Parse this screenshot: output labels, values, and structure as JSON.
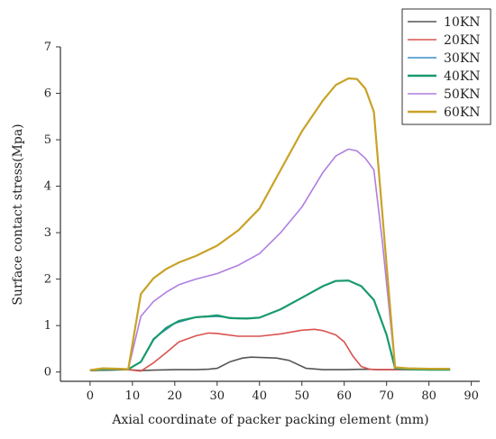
{
  "chart_data": {
    "type": "line",
    "xlabel": "Axial coordinate of packer packing element (mm)",
    "ylabel": "Surface contact stress(Mpa)",
    "xlim": [
      -7,
      92
    ],
    "ylim": [
      -0.2,
      7
    ],
    "xticks": [
      0,
      10,
      20,
      30,
      40,
      50,
      60,
      70,
      80,
      90
    ],
    "yticks": [
      0,
      1,
      2,
      3,
      4,
      5,
      6,
      7
    ],
    "grid": false,
    "legend_position": "top-right",
    "series": [
      {
        "name": "10KN",
        "color": "#555555",
        "x": [
          0,
          5,
          9,
          12,
          15,
          20,
          25,
          28,
          30,
          33,
          36,
          38,
          41,
          44,
          47,
          51,
          55,
          60,
          65,
          68,
          70,
          72,
          75,
          80,
          85
        ],
        "y": [
          0.03,
          0.04,
          0.05,
          0.03,
          0.04,
          0.05,
          0.05,
          0.06,
          0.08,
          0.22,
          0.3,
          0.32,
          0.31,
          0.3,
          0.25,
          0.08,
          0.05,
          0.05,
          0.06,
          0.05,
          0.05,
          0.05,
          0.05,
          0.05,
          0.05
        ]
      },
      {
        "name": "20KN",
        "color": "#d9534f",
        "x": [
          0,
          5,
          9,
          12,
          15,
          18,
          21,
          25,
          28,
          30,
          35,
          40,
          45,
          48,
          50,
          53,
          55,
          58,
          60,
          62,
          64,
          66,
          68,
          70,
          72,
          75,
          80,
          85
        ],
        "y": [
          0.03,
          0.05,
          0.05,
          0.02,
          0.2,
          0.42,
          0.65,
          0.78,
          0.84,
          0.83,
          0.77,
          0.77,
          0.82,
          0.87,
          0.9,
          0.92,
          0.89,
          0.8,
          0.65,
          0.35,
          0.12,
          0.06,
          0.05,
          0.05,
          0.05,
          0.05,
          0.05,
          0.05
        ]
      },
      {
        "name": "30KN",
        "color": "#3d8ec9",
        "x": [
          0,
          5,
          9,
          12,
          15,
          20,
          25,
          30,
          35,
          40,
          45,
          50,
          55,
          58,
          61,
          64,
          67,
          70,
          72,
          75,
          80,
          85
        ],
        "y": [
          0.04,
          0.06,
          0.06,
          0.22,
          0.72,
          1.05,
          1.18,
          1.2,
          1.15,
          1.17,
          1.35,
          1.6,
          1.85,
          1.96,
          1.97,
          1.85,
          1.55,
          0.8,
          0.08,
          0.06,
          0.05,
          0.05
        ]
      },
      {
        "name": "40KN",
        "color": "#1a9a6e",
        "x": [
          0,
          5,
          9,
          12,
          15,
          18,
          21,
          25,
          28,
          30,
          33,
          37,
          40,
          45,
          50,
          55,
          58,
          61,
          64,
          67,
          70,
          72,
          75,
          80,
          85
        ],
        "y": [
          0.04,
          0.06,
          0.06,
          0.22,
          0.7,
          0.95,
          1.1,
          1.18,
          1.2,
          1.22,
          1.16,
          1.15,
          1.17,
          1.35,
          1.6,
          1.85,
          1.96,
          1.97,
          1.85,
          1.55,
          0.8,
          0.08,
          0.06,
          0.05,
          0.05
        ]
      },
      {
        "name": "50KN",
        "color": "#b07ee0",
        "x": [
          0,
          3,
          7,
          9,
          12,
          15,
          18,
          21,
          25,
          30,
          35,
          40,
          45,
          50,
          55,
          58,
          61,
          63,
          65,
          67,
          69,
          72,
          75,
          80,
          85
        ],
        "y": [
          0.04,
          0.08,
          0.07,
          0.06,
          1.2,
          1.52,
          1.72,
          1.88,
          2.0,
          2.12,
          2.3,
          2.55,
          3.0,
          3.55,
          4.3,
          4.65,
          4.8,
          4.76,
          4.6,
          4.35,
          2.8,
          0.1,
          0.08,
          0.07,
          0.07
        ]
      },
      {
        "name": "60KN",
        "color": "#c9a227",
        "x": [
          0,
          3,
          7,
          9,
          12,
          15,
          18,
          21,
          25,
          30,
          35,
          40,
          45,
          50,
          55,
          58,
          61,
          63,
          65,
          67,
          69,
          72,
          75,
          80,
          85
        ],
        "y": [
          0.04,
          0.08,
          0.07,
          0.06,
          1.68,
          2.02,
          2.22,
          2.36,
          2.5,
          2.72,
          3.05,
          3.52,
          4.35,
          5.18,
          5.85,
          6.18,
          6.32,
          6.31,
          6.1,
          5.6,
          3.4,
          0.1,
          0.08,
          0.07,
          0.07
        ]
      }
    ]
  }
}
